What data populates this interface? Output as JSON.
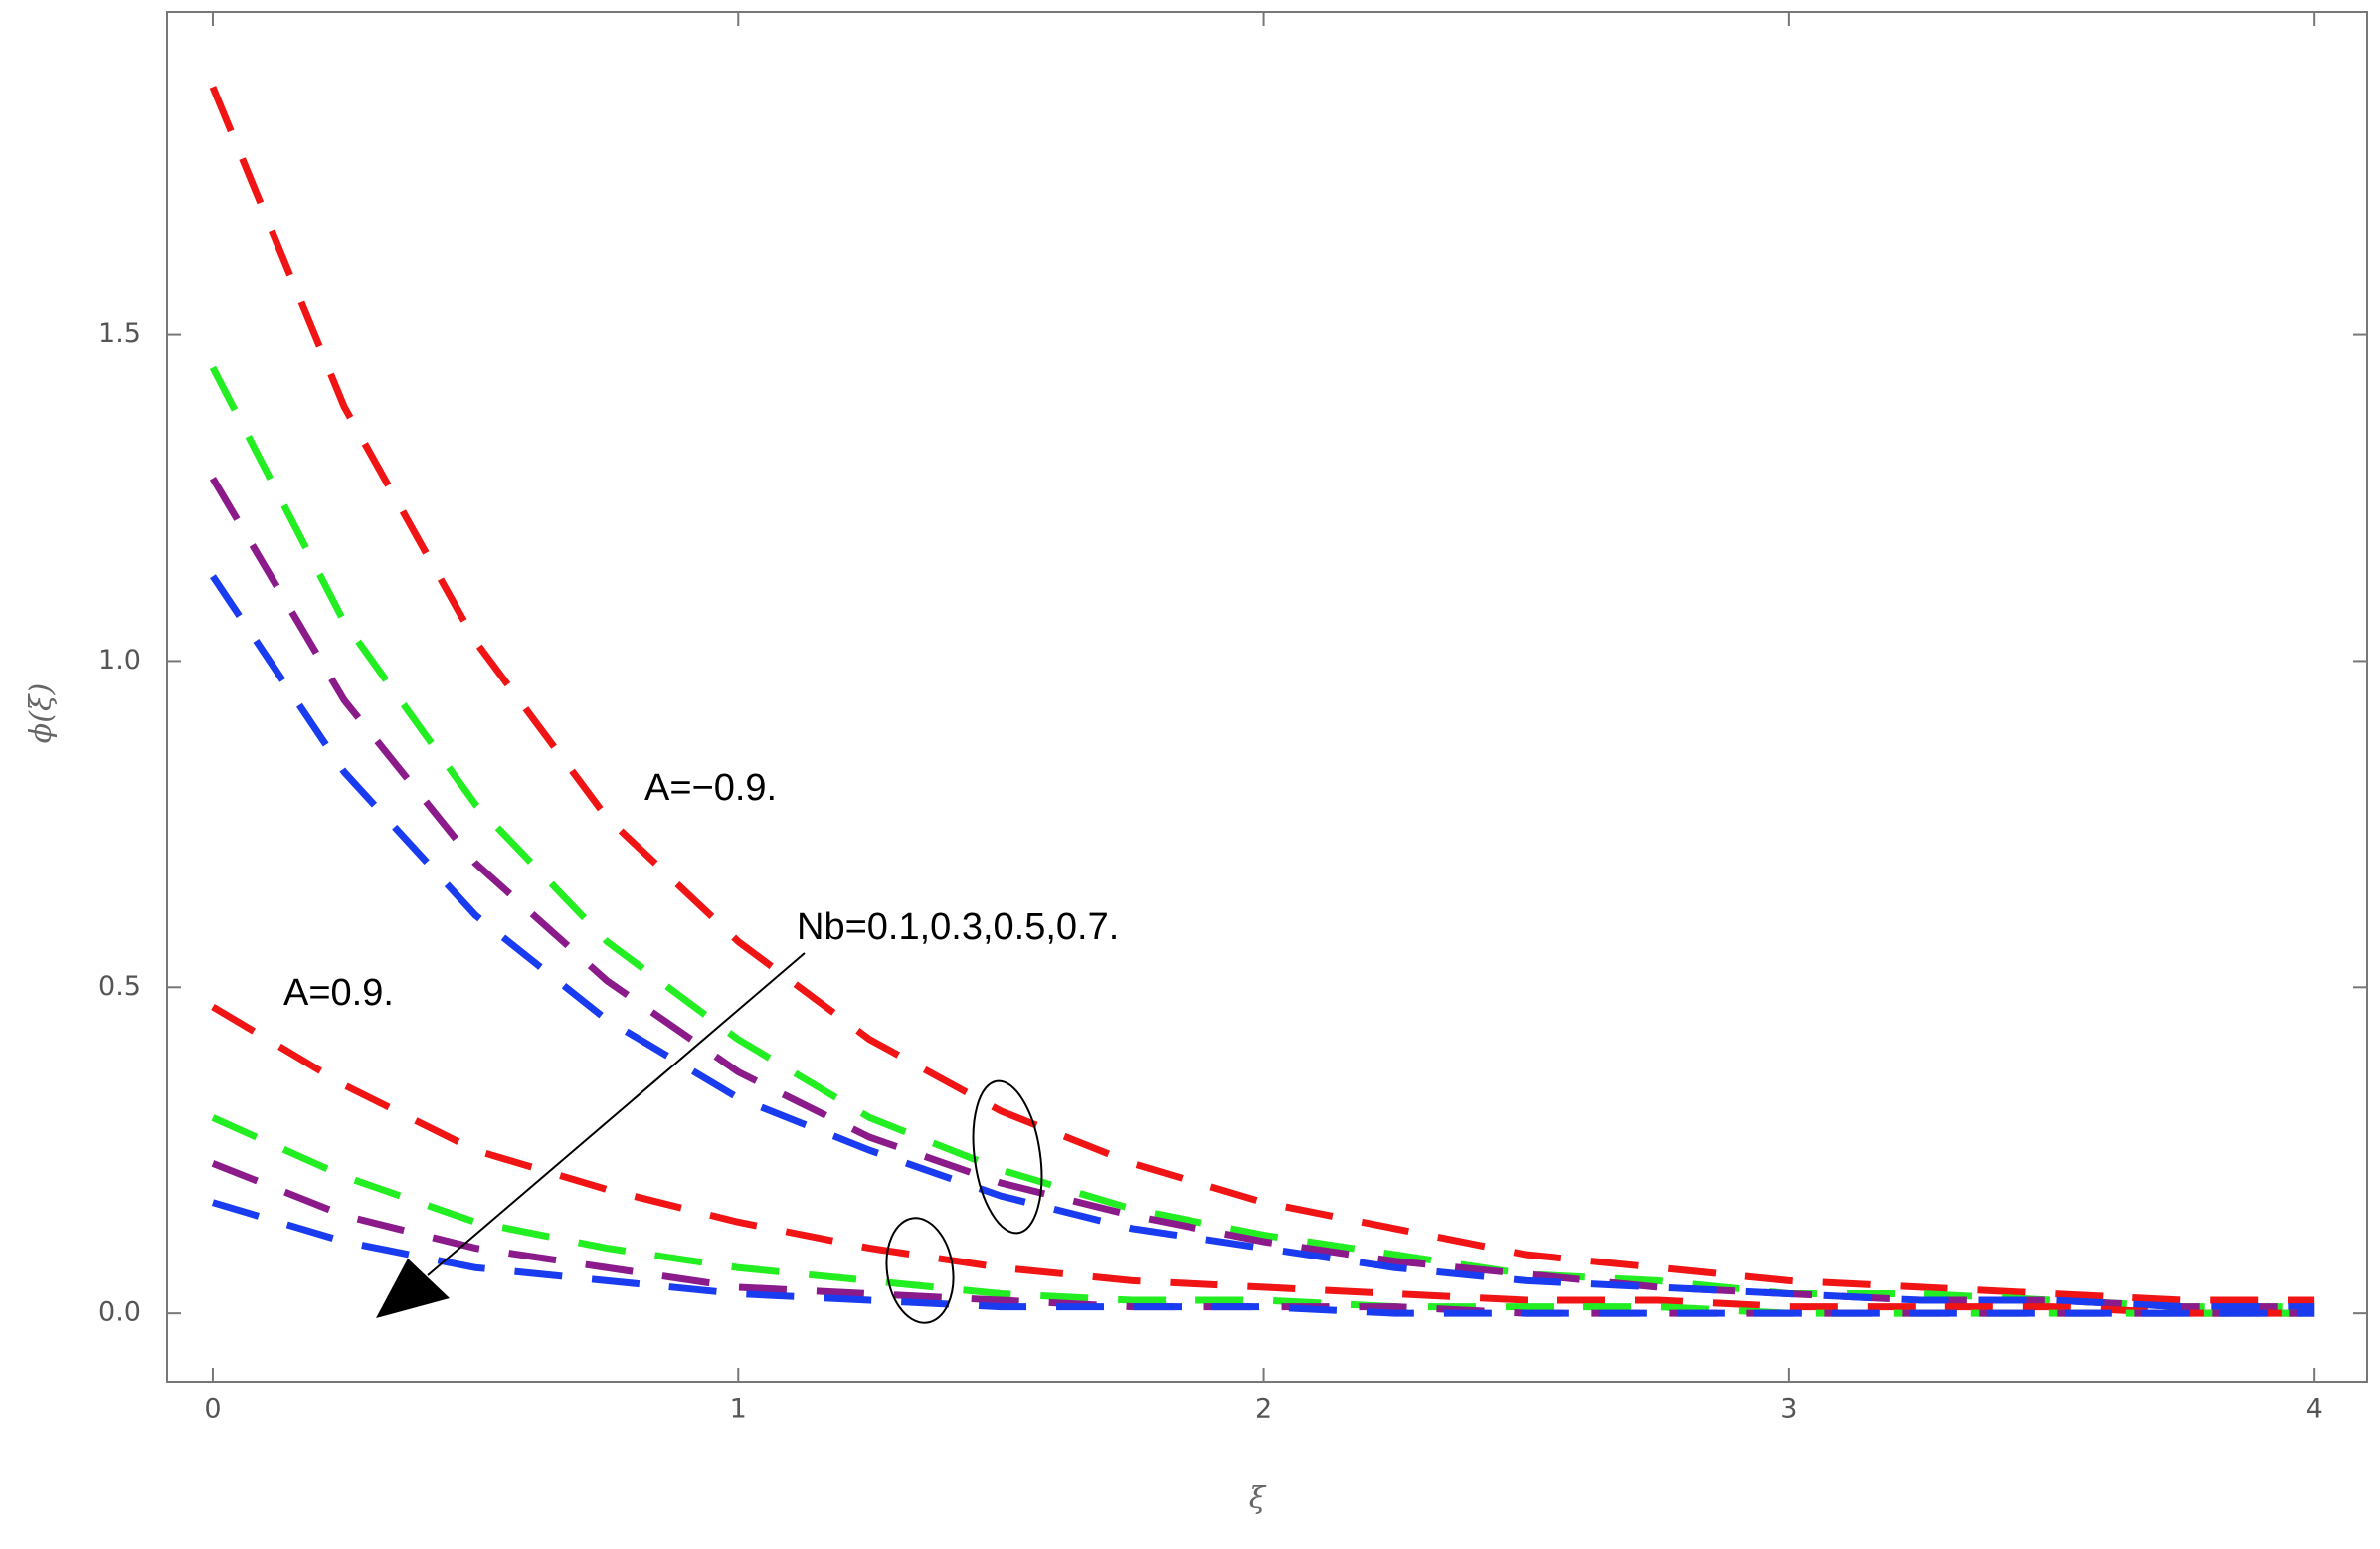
{
  "chart_data": {
    "type": "line",
    "x_label": "ξ",
    "y_label": "ϕ(ξ)",
    "annotations": [
      "A=−0.9.",
      "A=0.9.",
      "Nb=0.1,0.3,0.5,0.7."
    ],
    "x": [
      0,
      0.25,
      0.5,
      0.75,
      1,
      1.25,
      1.5,
      1.75,
      2,
      2.25,
      2.5,
      2.75,
      3,
      3.25,
      3.5,
      3.75,
      4
    ],
    "series": [
      {
        "color": "#f01414",
        "values": [
          1.88,
          1.39,
          1.03,
          0.76,
          0.57,
          0.42,
          0.31,
          0.23,
          0.17,
          0.13,
          0.09,
          0.07,
          0.05,
          0.04,
          0.03,
          0.02,
          0.02
        ]
      },
      {
        "color": "#22ee22",
        "values": [
          1.45,
          1.06,
          0.78,
          0.57,
          0.42,
          0.3,
          0.22,
          0.16,
          0.12,
          0.09,
          0.06,
          0.05,
          0.03,
          0.03,
          0.02,
          0.01,
          0.01
        ]
      },
      {
        "color": "#8b1a8b",
        "values": [
          1.28,
          0.94,
          0.69,
          0.51,
          0.37,
          0.27,
          0.2,
          0.15,
          0.11,
          0.08,
          0.06,
          0.04,
          0.03,
          0.02,
          0.02,
          0.01,
          0.01
        ]
      },
      {
        "color": "#1a3cf0",
        "values": [
          1.13,
          0.83,
          0.61,
          0.45,
          0.33,
          0.25,
          0.18,
          0.13,
          0.1,
          0.07,
          0.05,
          0.04,
          0.03,
          0.02,
          0.02,
          0.01,
          0.01
        ]
      },
      {
        "color": "#f01414",
        "values": [
          0.47,
          0.35,
          0.25,
          0.19,
          0.14,
          0.1,
          0.07,
          0.05,
          0.04,
          0.03,
          0.02,
          0.02,
          0.01,
          0.01,
          0.01,
          0,
          0
        ]
      },
      {
        "color": "#22ee22",
        "values": [
          0.3,
          0.21,
          0.14,
          0.1,
          0.07,
          0.05,
          0.03,
          0.02,
          0.02,
          0.01,
          0.01,
          0.01,
          0,
          0,
          0,
          0,
          0
        ]
      },
      {
        "color": "#8b1a8b",
        "values": [
          0.23,
          0.15,
          0.1,
          0.07,
          0.04,
          0.03,
          0.02,
          0.01,
          0.01,
          0.01,
          0,
          0,
          0,
          0,
          0,
          0,
          0
        ]
      },
      {
        "color": "#1a3cf0",
        "values": [
          0.17,
          0.11,
          0.07,
          0.05,
          0.03,
          0.02,
          0.01,
          0.01,
          0.01,
          0,
          0,
          0,
          0,
          0,
          0,
          0,
          0
        ]
      }
    ],
    "xlim": [
      -0.087,
      4.1
    ],
    "ylim": [
      -0.105,
      1.995
    ],
    "xticks": [
      0,
      1,
      2,
      3,
      4
    ],
    "yticks": [
      {
        "value": 0,
        "label": "0.0"
      },
      0.5,
      {
        "value": 1,
        "label": "1.0"
      },
      1.5
    ],
    "grid": false
  }
}
